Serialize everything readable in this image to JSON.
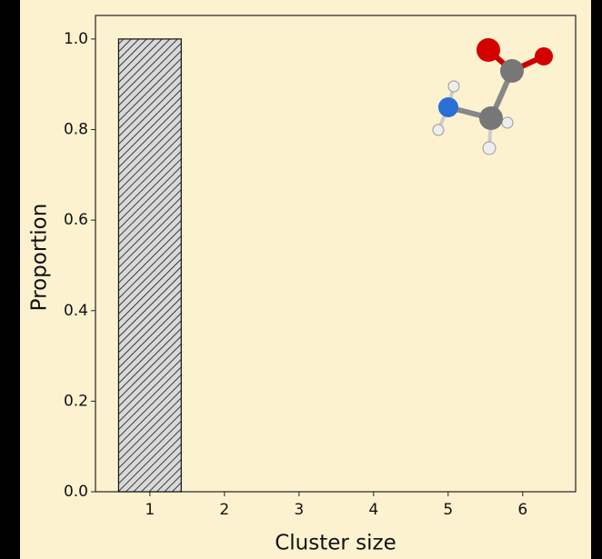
{
  "chart_data": {
    "type": "bar",
    "x": [
      1,
      2,
      3,
      4,
      5,
      6
    ],
    "values": [
      1,
      0,
      0,
      0,
      0,
      0
    ],
    "color": "#d9d9d9",
    "hatch": true,
    "xlabel": "Cluster size",
    "ylabel": "Proportion",
    "xlim": [
      0.27,
      6.71
    ],
    "ylim": [
      0,
      1.052
    ],
    "xticks": [
      1,
      2,
      3,
      4,
      5,
      6
    ],
    "yticks": [
      {
        "value": 0,
        "label": "0.0"
      },
      {
        "value": 0.2,
        "label": "0.2"
      },
      {
        "value": 0.4,
        "label": "0.4"
      },
      {
        "value": 0.6,
        "label": "0.6"
      },
      {
        "value": 0.8,
        "label": "0.8"
      },
      {
        "value": 1,
        "label": "1.0"
      }
    ],
    "grid": false
  }
}
